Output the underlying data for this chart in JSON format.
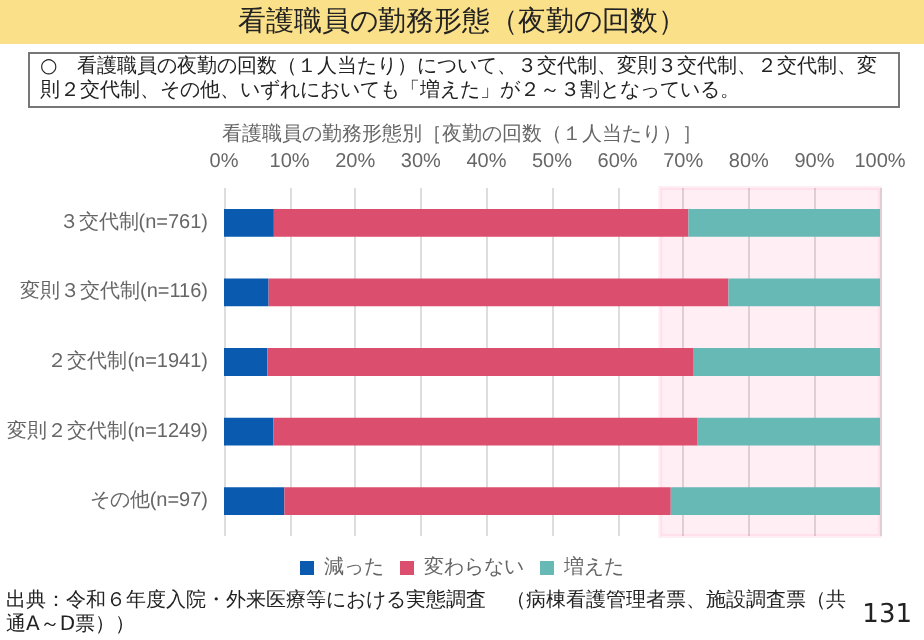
{
  "chart_data": {
    "type": "bar",
    "orientation": "horizontal",
    "stacked": true,
    "title": "看護職員の勤務形態（夜勤の回数）",
    "subtitle": "看護職員の勤務形態別［夜勤の回数（１人当たり）］",
    "annotations": [
      "○　看護職員の夜勤の回数（１人当たり）について、３交代制、変則３交代制、２交代制、変則２交代制、その他、いずれにおいても「増えた」が２～３割となっている。",
      "出典：令和６年度入院・外来医療等における実態調査　（病棟看護管理者票、施設調査票（共通A～D票））",
      "131"
    ],
    "categories": [
      "３交代制(n=761)",
      "変則３交代制(n=116)",
      "２交代制(n=1941)",
      "変則２交代制(n=1249)",
      "その他(n=97)"
    ],
    "series": [
      {
        "name": "減った",
        "color": "#0a5bb0",
        "values": [
          7.6,
          6.8,
          6.6,
          7.5,
          9.2
        ]
      },
      {
        "name": "変わらない",
        "color": "#dc4e6e",
        "values": [
          63.2,
          70.1,
          65.0,
          64.7,
          58.9
        ]
      },
      {
        "name": "増えた",
        "color": "#66b9b5",
        "values": [
          29.2,
          23.1,
          28.4,
          27.8,
          31.9
        ]
      }
    ],
    "xlim": [
      0,
      100
    ],
    "xticks": [
      {
        "value": 0,
        "label": "0%"
      },
      {
        "value": 10,
        "label": "10%"
      },
      {
        "value": 20,
        "label": "20%"
      },
      {
        "value": 30,
        "label": "30%"
      },
      {
        "value": 40,
        "label": "40%"
      },
      {
        "value": 50,
        "label": "50%"
      },
      {
        "value": 60,
        "label": "60%"
      },
      {
        "value": 70,
        "label": "70%"
      },
      {
        "value": 80,
        "label": "80%"
      },
      {
        "value": 90,
        "label": "90%"
      },
      {
        "value": 100,
        "label": "100%"
      }
    ],
    "bands": [
      {
        "axis": "x",
        "from": 66.5,
        "to": 100,
        "label": null,
        "color": "#ff2d7a"
      }
    ],
    "grid": "x",
    "legend": "bottom"
  }
}
